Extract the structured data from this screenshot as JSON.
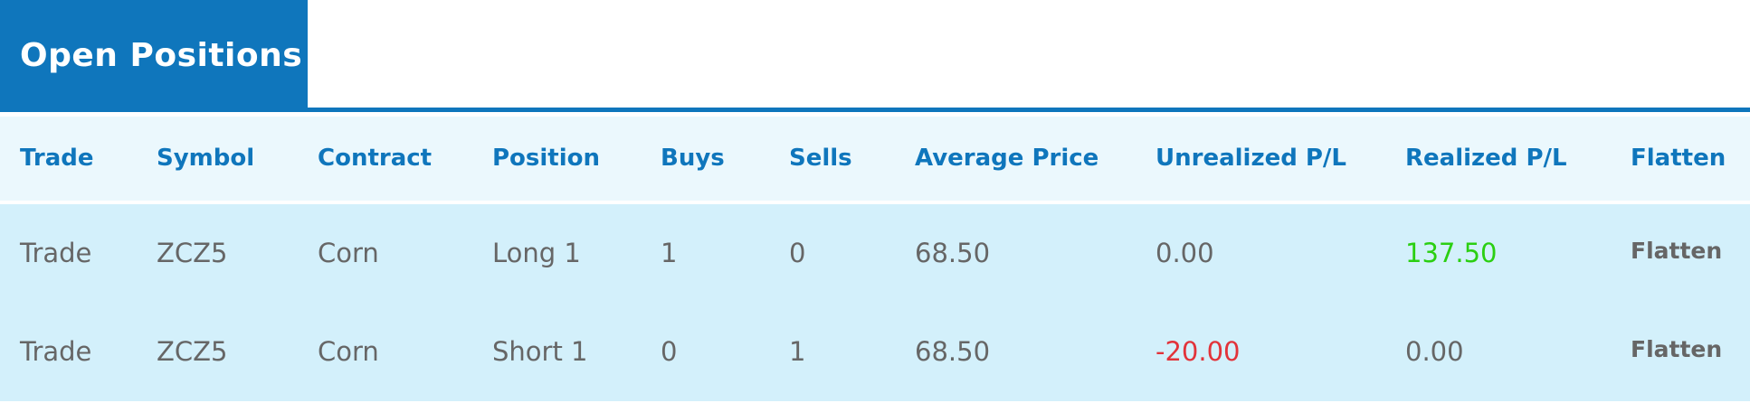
{
  "title": "Open Positions",
  "colors": {
    "brand_blue": "#0f76bc",
    "header_bg": "#ebf8fd",
    "row_bg": "#d3f0fb",
    "positive": "#2bcf12",
    "negative": "#e2333a",
    "text": "#666666"
  },
  "table": {
    "headers": [
      "Trade",
      "Symbol",
      "Contract",
      "Position",
      "Buys",
      "Sells",
      "Average Price",
      "Unrealized P/L",
      "Realized P/L",
      "Flatten"
    ],
    "rows": [
      {
        "trade": "Trade",
        "symbol": "ZCZ5",
        "contract": "Corn",
        "position": "Long 1",
        "buys": "1",
        "sells": "0",
        "average_price": "68.50",
        "unrealized_pl": "0.00",
        "realized_pl": "137.50",
        "flatten_label": "Flatten"
      },
      {
        "trade": "Trade",
        "symbol": "ZCZ5",
        "contract": "Corn",
        "position": "Short 1",
        "buys": "0",
        "sells": "1",
        "average_price": "68.50",
        "unrealized_pl": "-20.00",
        "realized_pl": "0.00",
        "flatten_label": "Flatten"
      }
    ]
  }
}
